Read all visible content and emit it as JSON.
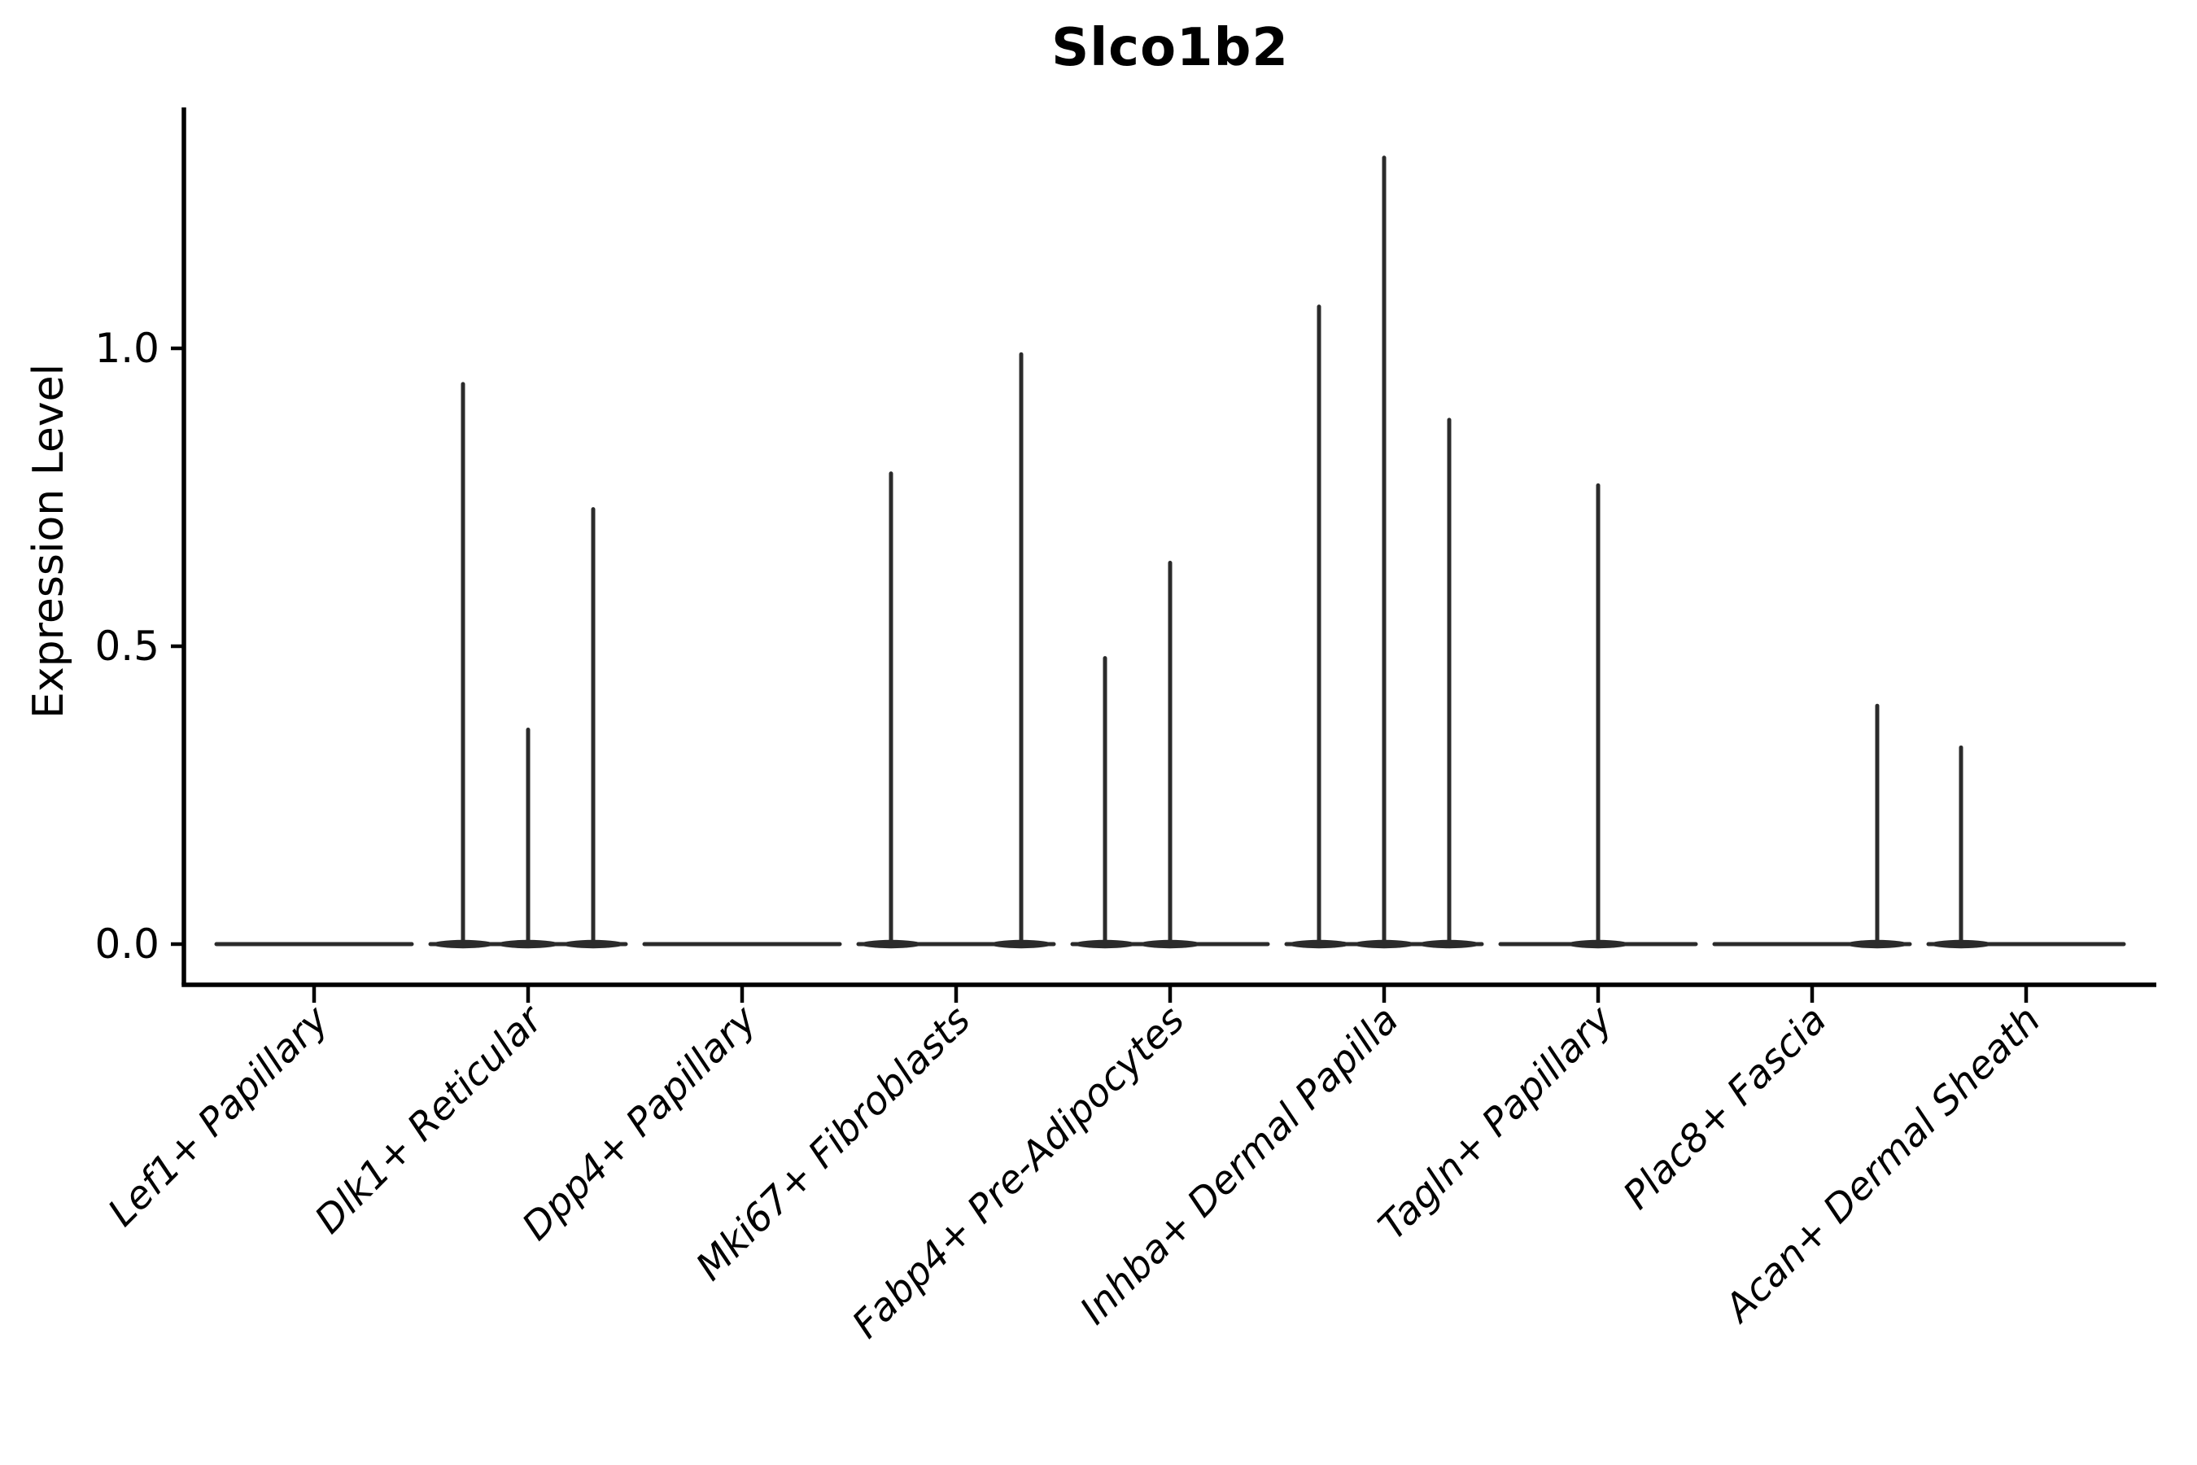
{
  "chart_data": {
    "type": "violin",
    "title": "Slco1b2",
    "ylabel": "Expression Level",
    "xlabel": "",
    "categories": [
      "Lef1+ Papillary",
      "Dlk1+ Reticular",
      "Dpp4+ Papillary",
      "Mki67+ Fibroblasts",
      "Fabp4+ Pre-Adipocytes",
      "Inhba+ Dermal Papilla",
      "Tagln+ Papillary",
      "Plac8+ Fascia",
      "Acan+ Dermal Sheath"
    ],
    "violins_per_category": 3,
    "violin_max_expression": [
      [
        0,
        0,
        0
      ],
      [
        0.94,
        0.36,
        0.73
      ],
      [
        0,
        0,
        0
      ],
      [
        0.79,
        0,
        0.99
      ],
      [
        0.48,
        0.64,
        0
      ],
      [
        1.07,
        1.32,
        0.88
      ],
      [
        0,
        0.77,
        0
      ],
      [
        0,
        0,
        0.4
      ],
      [
        0.33,
        0,
        0
      ]
    ],
    "yticks": [
      {
        "value": 0.0,
        "label": "0.0"
      },
      {
        "value": 0.5,
        "label": "0.5"
      },
      {
        "value": 1.0,
        "label": "1.0"
      }
    ],
    "ylim": [
      -0.07,
      1.4
    ],
    "grid": false,
    "legend": "none",
    "colors": {
      "violin": "#2b2b2b",
      "axis": "#000000",
      "text": "#000000",
      "background": "#ffffff"
    }
  }
}
